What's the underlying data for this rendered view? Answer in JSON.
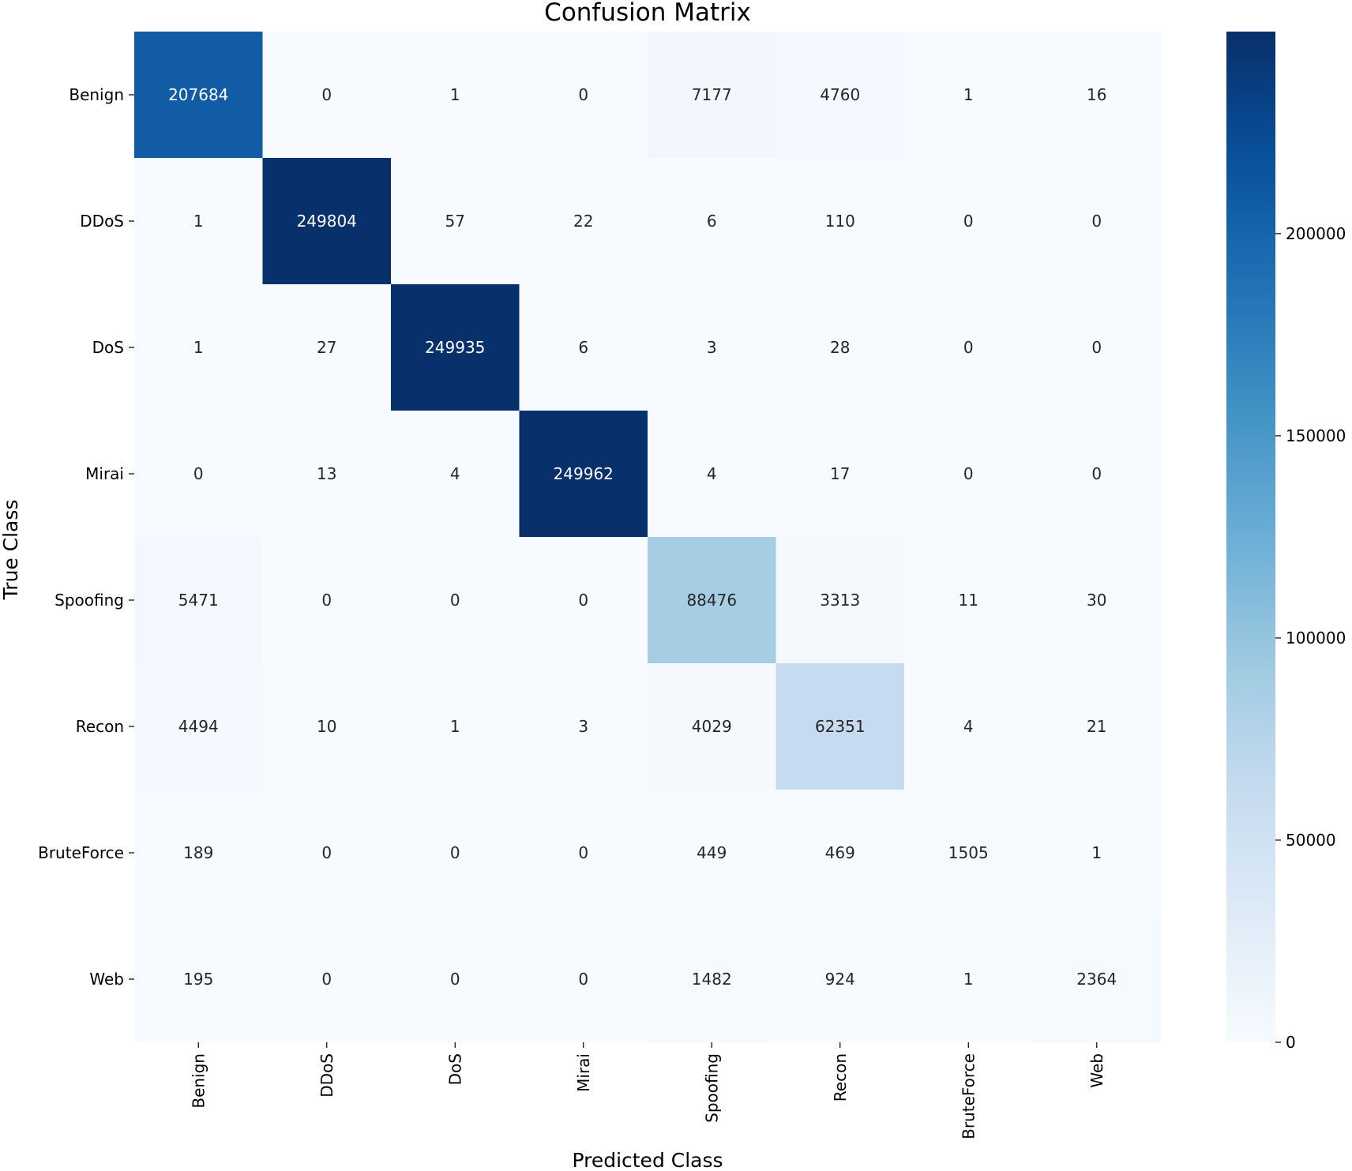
{
  "chart_data": {
    "type": "heatmap",
    "title": "Confusion Matrix",
    "xlabel": "Predicted Class",
    "ylabel": "True Class",
    "x_categories": [
      "Benign",
      "DDoS",
      "DoS",
      "Mirai",
      "Spoofing",
      "Recon",
      "BruteForce",
      "Web"
    ],
    "y_categories": [
      "Benign",
      "DDoS",
      "DoS",
      "Mirai",
      "Spoofing",
      "Recon",
      "BruteForce",
      "Web"
    ],
    "matrix": [
      [
        207684,
        0,
        1,
        0,
        7177,
        4760,
        1,
        16
      ],
      [
        1,
        249804,
        57,
        22,
        6,
        110,
        0,
        0
      ],
      [
        1,
        27,
        249935,
        6,
        3,
        28,
        0,
        0
      ],
      [
        0,
        13,
        4,
        249962,
        4,
        17,
        0,
        0
      ],
      [
        5471,
        0,
        0,
        0,
        88476,
        3313,
        11,
        30
      ],
      [
        4494,
        10,
        1,
        3,
        4029,
        62351,
        4,
        21
      ],
      [
        189,
        0,
        0,
        0,
        449,
        469,
        1505,
        1
      ],
      [
        195,
        0,
        0,
        0,
        1482,
        924,
        1,
        2364
      ]
    ],
    "colorbar": {
      "min": 0,
      "max": 249962,
      "ticks": [
        0,
        50000,
        100000,
        150000,
        200000
      ],
      "colormap": "Blues",
      "colors": [
        "#f7fbff",
        "#deebf7",
        "#c6dbef",
        "#9ecae1",
        "#6baed6",
        "#4292c6",
        "#2171b5",
        "#08519c",
        "#08306b"
      ]
    },
    "annotation_colors": {
      "dark_text": "#262626",
      "light_text": "#ffffff"
    }
  }
}
